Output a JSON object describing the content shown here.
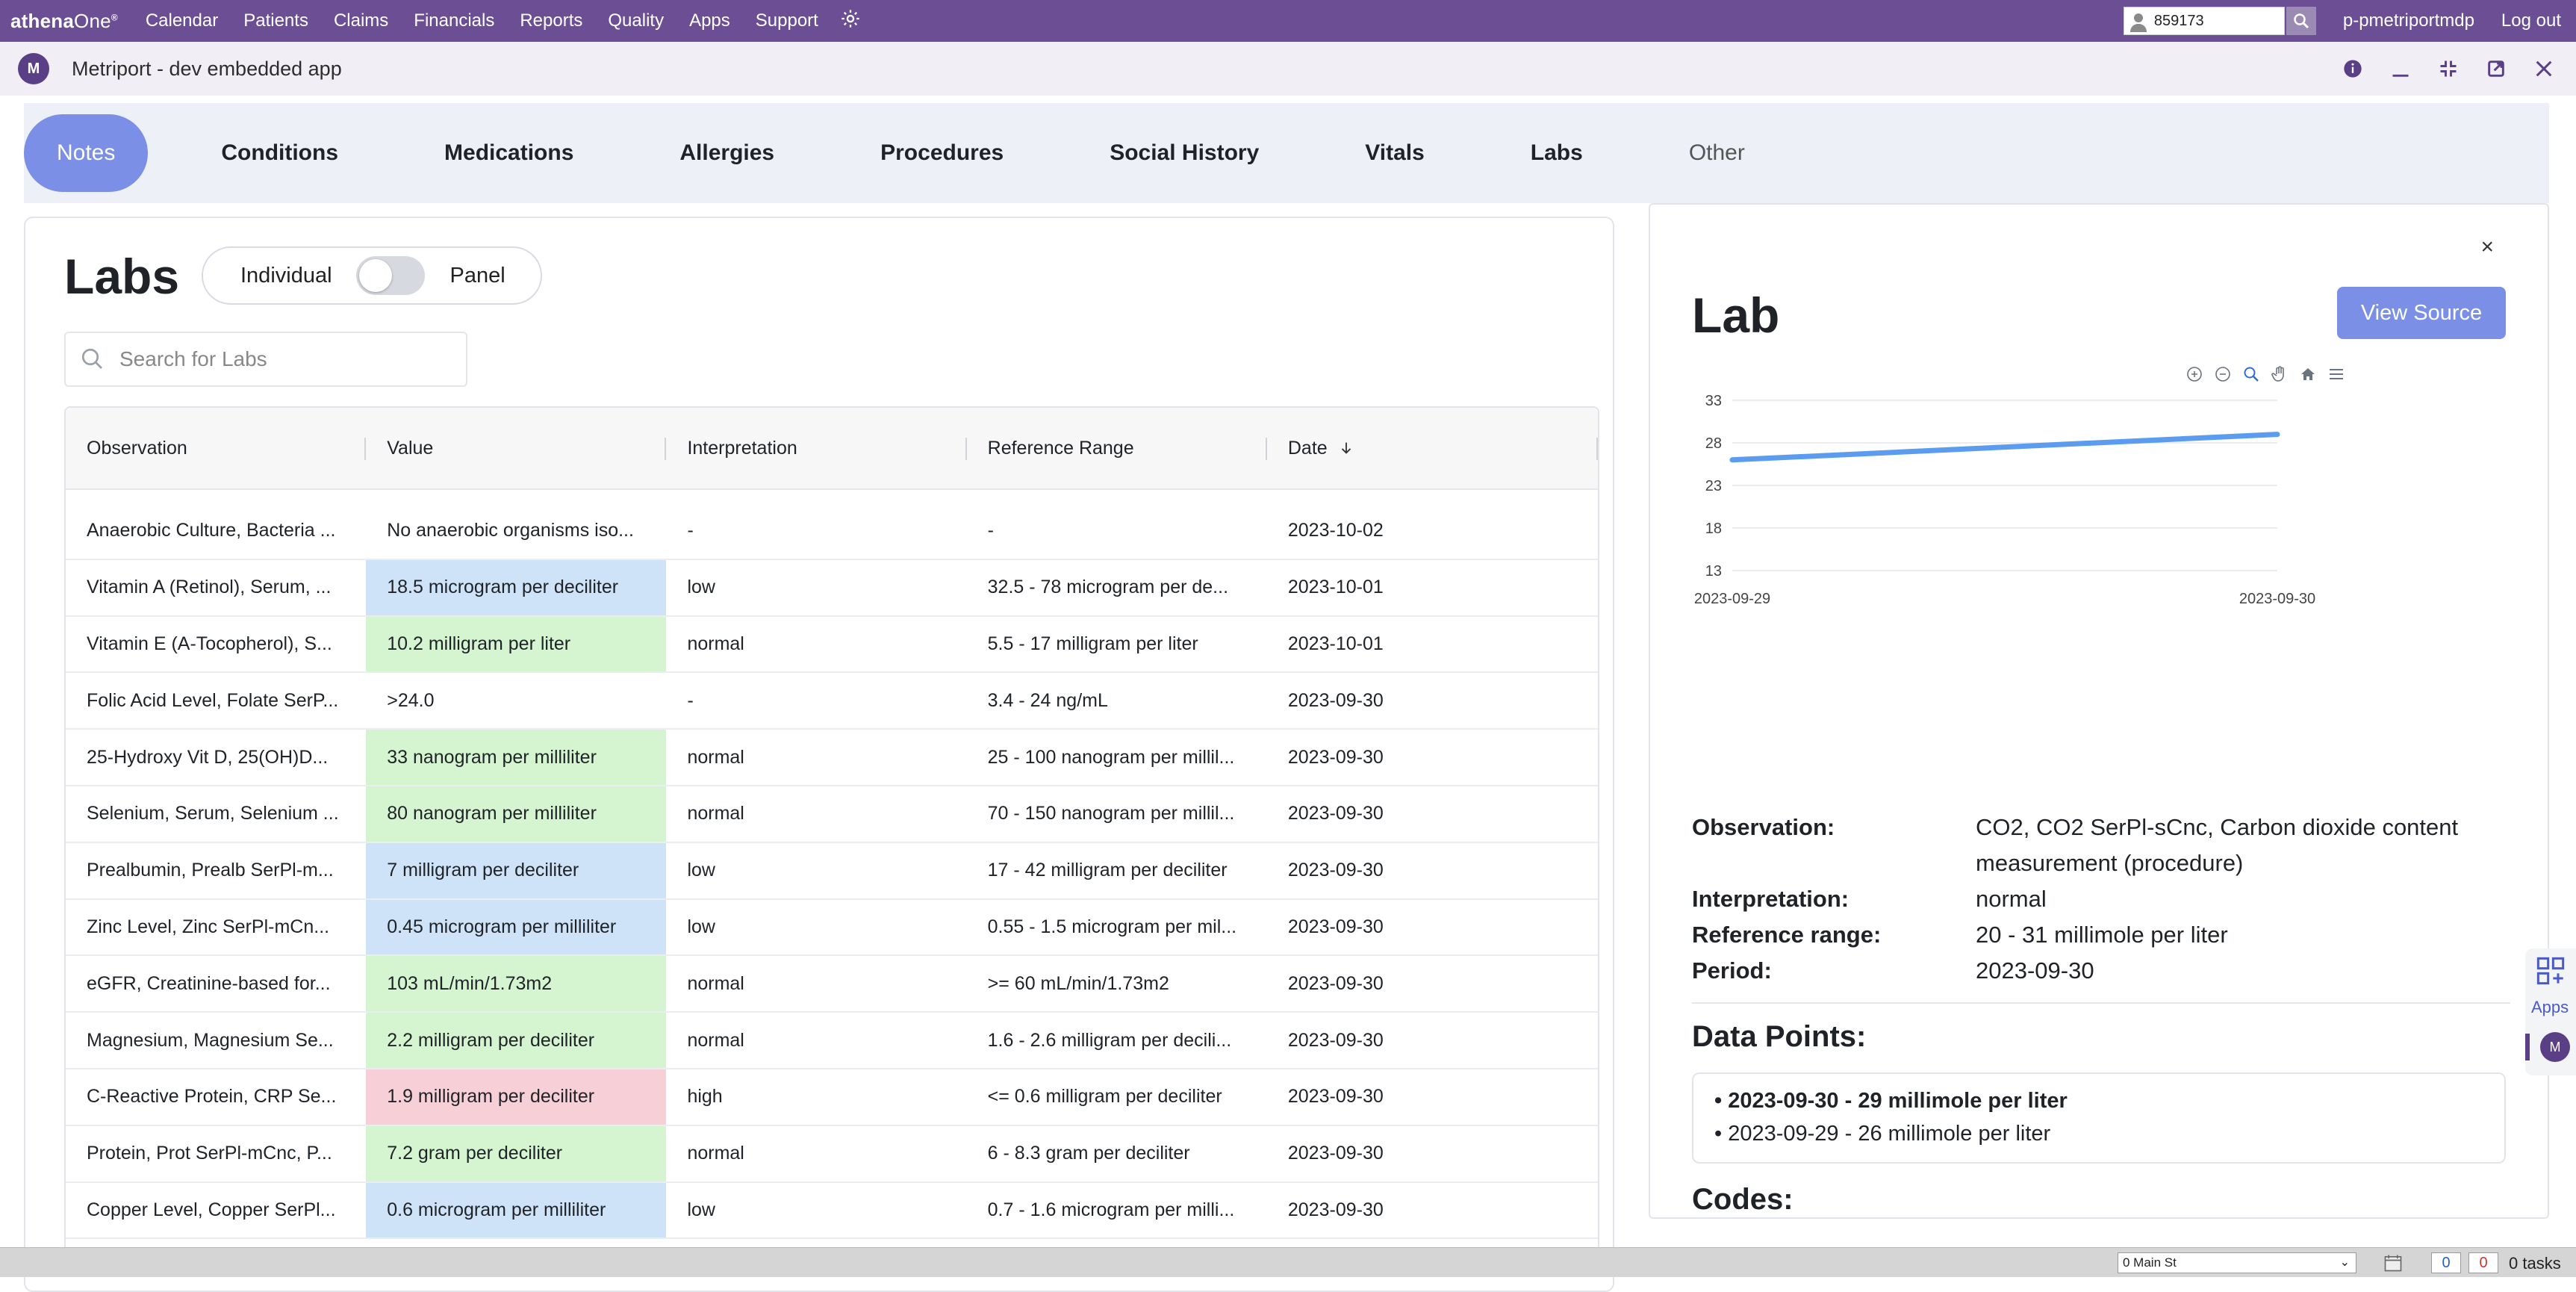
{
  "topbar": {
    "brand_main": "athena",
    "brand_one": "One",
    "brand_reg": "®",
    "nav": [
      "Calendar",
      "Patients",
      "Claims",
      "Financials",
      "Reports",
      "Quality",
      "Apps",
      "Support"
    ],
    "patient_id": "859173",
    "user": "p-pmetriportmdp",
    "logout": "Log out",
    "brand_color": "#6c4e94"
  },
  "app": {
    "avatar_letter": "M",
    "title": "Metriport - dev embedded app"
  },
  "tabs": [
    {
      "label": "Notes",
      "active": true
    },
    {
      "label": "Conditions"
    },
    {
      "label": "Medications"
    },
    {
      "label": "Allergies"
    },
    {
      "label": "Procedures"
    },
    {
      "label": "Social History"
    },
    {
      "label": "Vitals"
    },
    {
      "label": "Labs"
    },
    {
      "label": "Other"
    }
  ],
  "labs": {
    "title": "Labs",
    "toggle_left": "Individual",
    "toggle_right": "Panel",
    "search_placeholder": "Search for Labs",
    "columns": [
      "Observation",
      "Value",
      "Interpretation",
      "Reference Range",
      "Date"
    ],
    "rows": [
      {
        "obs": "Anaerobic Culture, Bacteria ...",
        "value": "No anaerobic organisms iso...",
        "interp": "-",
        "range": "-",
        "date": "2023-10-02",
        "status": "none"
      },
      {
        "obs": "Vitamin A (Retinol), Serum, ...",
        "value": "18.5 microgram per deciliter",
        "interp": "low",
        "range": "32.5 - 78 microgram per de...",
        "date": "2023-10-01",
        "status": "low"
      },
      {
        "obs": "Vitamin E (A-Tocopherol), S...",
        "value": "10.2 milligram per liter",
        "interp": "normal",
        "range": "5.5 - 17 milligram per liter",
        "date": "2023-10-01",
        "status": "normal"
      },
      {
        "obs": "Folic Acid Level, Folate SerP...",
        "value": ">24.0",
        "interp": "-",
        "range": "3.4 - 24 ng/mL",
        "date": "2023-09-30",
        "status": "none"
      },
      {
        "obs": "25-Hydroxy Vit D, 25(OH)D...",
        "value": "33 nanogram per milliliter",
        "interp": "normal",
        "range": "25 - 100 nanogram per millil...",
        "date": "2023-09-30",
        "status": "normal"
      },
      {
        "obs": "Selenium, Serum, Selenium ...",
        "value": "80 nanogram per milliliter",
        "interp": "normal",
        "range": "70 - 150 nanogram per millil...",
        "date": "2023-09-30",
        "status": "normal"
      },
      {
        "obs": "Prealbumin, Prealb SerPl-m...",
        "value": "7 milligram per deciliter",
        "interp": "low",
        "range": "17 - 42 milligram per deciliter",
        "date": "2023-09-30",
        "status": "low"
      },
      {
        "obs": "Zinc Level, Zinc SerPl-mCn...",
        "value": "0.45 microgram per milliliter",
        "interp": "low",
        "range": "0.55 - 1.5 microgram per mil...",
        "date": "2023-09-30",
        "status": "low"
      },
      {
        "obs": "eGFR, Creatinine-based for...",
        "value": "103 mL/min/1.73m2",
        "interp": "normal",
        "range": ">= 60 mL/min/1.73m2",
        "date": "2023-09-30",
        "status": "normal"
      },
      {
        "obs": "Magnesium, Magnesium Se...",
        "value": "2.2 milligram per deciliter",
        "interp": "normal",
        "range": "1.6 - 2.6 milligram per decili...",
        "date": "2023-09-30",
        "status": "normal"
      },
      {
        "obs": "C-Reactive Protein, CRP Se...",
        "value": "1.9 milligram per deciliter",
        "interp": "high",
        "range": "<= 0.6 milligram per deciliter",
        "date": "2023-09-30",
        "status": "high"
      },
      {
        "obs": "Protein, Prot SerPl-mCnc, P...",
        "value": "7.2 gram per deciliter",
        "interp": "normal",
        "range": "6 - 8.3 gram per deciliter",
        "date": "2023-09-30",
        "status": "normal"
      },
      {
        "obs": "Copper Level, Copper SerPl...",
        "value": "0.6 microgram per milliliter",
        "interp": "low",
        "range": "0.7 - 1.6 microgram per milli...",
        "date": "2023-09-30",
        "status": "low"
      }
    ]
  },
  "detail": {
    "close": "×",
    "title": "Lab",
    "view_source": "View Source",
    "fields": [
      {
        "k": "Observation:",
        "v": "CO2, CO2 SerPl-sCnc, Carbon dioxide content measurement (procedure)"
      },
      {
        "k": "Interpretation:",
        "v": "normal"
      },
      {
        "k": "Reference range:",
        "v": "20 - 31 millimole per liter"
      },
      {
        "k": "Period:",
        "v": "2023-09-30"
      }
    ],
    "data_points_title": "Data Points:",
    "data_points": [
      {
        "text": "2023-09-30 - 29 millimole per liter",
        "bold": true
      },
      {
        "text": "2023-09-29 - 26 millimole per liter",
        "bold": false
      }
    ],
    "codes_title": "Codes:"
  },
  "chart_data": {
    "type": "line",
    "x": [
      "2023-09-29",
      "2023-09-30"
    ],
    "series": [
      {
        "values": [
          26,
          29
        ],
        "color": "#5b9cf0"
      }
    ],
    "yticks": [
      13,
      18,
      23,
      28,
      33
    ],
    "ylim": [
      13,
      33
    ],
    "grid": true
  },
  "dock": {
    "apps_label": "Apps",
    "avatar_letter": "M"
  },
  "status": {
    "location": "0 Main St",
    "count_blue": "0",
    "count_red": "0",
    "tasks": "0 tasks"
  }
}
